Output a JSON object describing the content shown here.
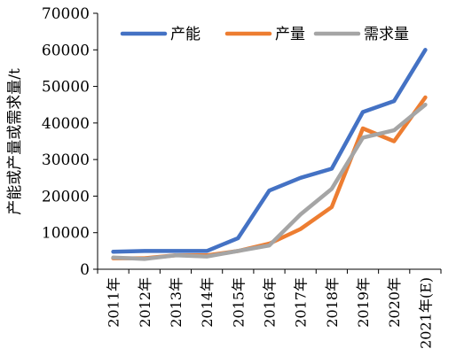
{
  "chart_data": {
    "type": "line",
    "title": "",
    "xlabel": "",
    "ylabel": "产能或产量或需求量/t",
    "ylim": [
      0,
      70000
    ],
    "yticks": [
      0,
      10000,
      20000,
      30000,
      40000,
      50000,
      60000,
      70000
    ],
    "y_tick_labels": [
      "0",
      "10000",
      "20000",
      "30000",
      "40000",
      "50000",
      "60000",
      "70000"
    ],
    "categories": [
      "2011年",
      "2012年",
      "2013年",
      "2014年",
      "2015年",
      "2016年",
      "2017年",
      "2018年",
      "2019年",
      "2020年",
      "2021年(E)"
    ],
    "grid": false,
    "legend_position": "top",
    "series": [
      {
        "name": "产能",
        "color": "#4472C4",
        "values": [
          4800,
          5000,
          5000,
          5000,
          8500,
          21500,
          25000,
          27500,
          43000,
          46000,
          60000
        ]
      },
      {
        "name": "产量",
        "color": "#ED7D31",
        "values": [
          3000,
          3000,
          3800,
          3800,
          5000,
          7000,
          11000,
          17000,
          38500,
          35000,
          47000
        ]
      },
      {
        "name": "需求量",
        "color": "#A5A5A5",
        "values": [
          3200,
          2800,
          3800,
          3500,
          5000,
          6500,
          15000,
          22000,
          36000,
          38000,
          45000
        ]
      }
    ]
  }
}
